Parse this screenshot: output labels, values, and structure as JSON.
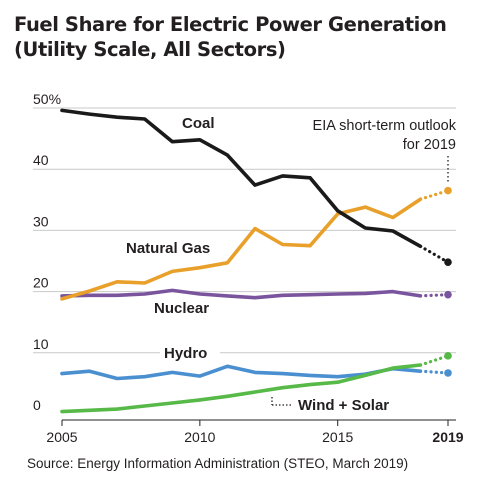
{
  "title_line1": "Fuel Share for Electric Power Generation",
  "title_line2": "(Utility Scale, All Sectors)",
  "source": "Source:  Energy Information Administration (STEO, March 2019)",
  "chart_data": {
    "type": "line",
    "title": "Fuel Share for Electric Power Generation (Utility Scale, All Sectors)",
    "xlabel": "",
    "ylabel": "",
    "xlim": [
      2005,
      2019
    ],
    "ylim": [
      0,
      50
    ],
    "x_ticks": [
      {
        "value": 2005,
        "label": "2005",
        "bold": false
      },
      {
        "value": 2010,
        "label": "2010",
        "bold": false
      },
      {
        "value": 2015,
        "label": "2015",
        "bold": false
      },
      {
        "value": 2019,
        "label": "2019",
        "bold": true
      }
    ],
    "y_ticks": [
      {
        "value": 0,
        "label": "0"
      },
      {
        "value": 10,
        "label": "10"
      },
      {
        "value": 20,
        "label": "20"
      },
      {
        "value": 30,
        "label": "30"
      },
      {
        "value": 40,
        "label": "40"
      },
      {
        "value": 50,
        "label": "50%"
      }
    ],
    "grid": true,
    "x": [
      2005,
      2006,
      2007,
      2008,
      2009,
      2010,
      2011,
      2012,
      2013,
      2014,
      2015,
      2016,
      2017,
      2018
    ],
    "series": [
      {
        "name": "Coal",
        "color": "#1a1a1a",
        "values": [
          49.6,
          49.0,
          48.5,
          48.2,
          44.5,
          44.8,
          42.3,
          37.4,
          38.9,
          38.6,
          33.2,
          30.4,
          29.9,
          27.4
        ],
        "forecast": 24.8
      },
      {
        "name": "Natural Gas",
        "color": "#e8a02a",
        "values": [
          18.8,
          20.1,
          21.6,
          21.4,
          23.3,
          23.9,
          24.7,
          30.3,
          27.7,
          27.5,
          32.7,
          33.8,
          32.1,
          35.1
        ],
        "forecast": 36.5
      },
      {
        "name": "Nuclear",
        "color": "#7a559e",
        "values": [
          19.3,
          19.4,
          19.4,
          19.6,
          20.2,
          19.6,
          19.3,
          19.0,
          19.4,
          19.5,
          19.6,
          19.7,
          20.0,
          19.3
        ],
        "forecast": 19.5
      },
      {
        "name": "Hydro",
        "color": "#4a8fd0",
        "values": [
          6.6,
          7.0,
          5.8,
          6.1,
          6.8,
          6.2,
          7.8,
          6.8,
          6.6,
          6.3,
          6.1,
          6.5,
          7.4,
          7.0
        ],
        "forecast": 6.7
      },
      {
        "name": "Wind + Solar",
        "color": "#57b947",
        "values": [
          0.4,
          0.6,
          0.8,
          1.3,
          1.8,
          2.3,
          2.9,
          3.6,
          4.3,
          4.8,
          5.2,
          6.3,
          7.5,
          8.0
        ],
        "forecast": 9.5
      }
    ],
    "series_labels": {
      "coal": "Coal",
      "natural_gas": "Natural Gas",
      "nuclear": "Nuclear",
      "hydro": "Hydro",
      "wind_solar": "Wind + Solar"
    },
    "annotation_line1": "EIA short-term outlook",
    "annotation_line2": "for 2019"
  }
}
